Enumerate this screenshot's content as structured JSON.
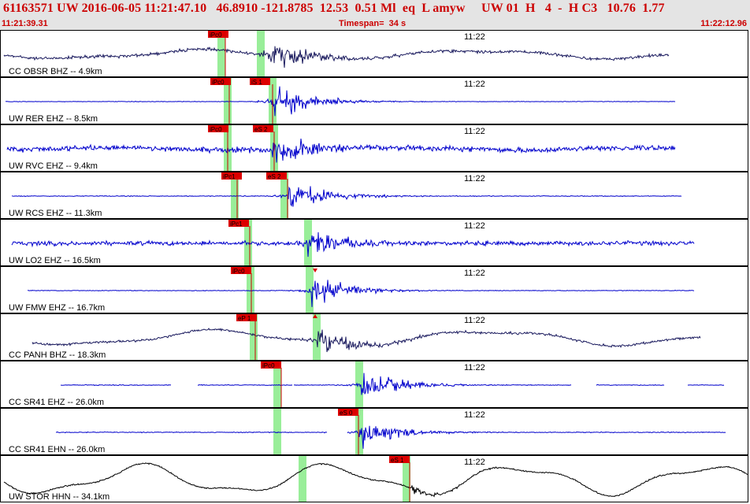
{
  "header": {
    "title": "61163571 UW 2016-06-05 11:21:47.10   46.8910 -121.8785  12.53  0.51 Ml  eq  L amyw     UW 01  H   4  -  H C3   10.76  1.77",
    "time_start": "11:21:39.31",
    "timespan": "Timespan=  34 s",
    "time_end": "11:22:12.96"
  },
  "colors": {
    "blue_trace": "#0000cc",
    "dark_trace": "#1a1a5e",
    "black_trace": "#000000",
    "pick_box": "#dd0000",
    "pick_window": "#99ee99"
  },
  "traces": [
    {
      "label": "CC OBSR BHZ -- 4.9km",
      "tick": "11:22",
      "color": "dark_trace",
      "kind": "lowfreq",
      "picks": [
        {
          "label": "iPc0",
          "x": 263,
          "win": 285
        }
      ],
      "green": [
        275,
        325
      ],
      "event": 340,
      "start": 4,
      "end": 848,
      "noise": 0.2,
      "amp": 0.9,
      "slow": 0.35,
      "seg": []
    },
    {
      "label": "UW RER EHZ -- 8.5km",
      "tick": "11:22",
      "color": "blue_trace",
      "kind": "quiet",
      "picks": [
        {
          "label": "iPc0",
          "x": 266,
          "win": 290
        },
        {
          "label": "iS 1",
          "x": 316,
          "win": 345
        }
      ],
      "green": [
        283,
        340
      ],
      "event": 346,
      "start": 6,
      "end": 856,
      "noise": 0.03,
      "amp": 0.95,
      "slow": 0,
      "seg": []
    },
    {
      "label": "UW RVC EHZ -- 9.4km",
      "tick": "11:22",
      "color": "blue_trace",
      "kind": "noisy",
      "picks": [
        {
          "label": "iPc0",
          "x": 263,
          "win": 288
        },
        {
          "label": "eS 2",
          "x": 320,
          "win": 347
        }
      ],
      "green": [
        283,
        342
      ],
      "event": 345,
      "start": 8,
      "end": 856,
      "noise": 0.35,
      "amp": 0.9,
      "slow": 0.1,
      "seg": []
    },
    {
      "label": "UW RCS EHZ -- 11.3km",
      "tick": "11:22",
      "color": "blue_trace",
      "kind": "quiet",
      "picks": [
        {
          "label": "iPc1",
          "x": 280,
          "win": 300
        },
        {
          "label": "eS 2",
          "x": 337,
          "win": 364
        }
      ],
      "green": [
        292,
        355
      ],
      "event": 365,
      "start": 14,
      "end": 864,
      "noise": 0.05,
      "amp": 0.9,
      "slow": 0,
      "seg": []
    },
    {
      "label": "UW LO2 EHZ -- 16.5km",
      "tick": "11:22",
      "color": "blue_trace",
      "kind": "noisy",
      "picks": [
        {
          "label": "iPc1",
          "x": 289,
          "win": 316
        }
      ],
      "green": [
        309,
        385
      ],
      "event": 390,
      "start": 14,
      "end": 880,
      "noise": 0.28,
      "amp": 0.85,
      "slow": 0,
      "seg": []
    },
    {
      "label": "UW FMW EHZ -- 16.7km",
      "tick": "11:22",
      "color": "blue_trace",
      "kind": "quiet",
      "picks": [
        {
          "label": "iPc0",
          "x": 292,
          "win": 318
        }
      ],
      "green": [
        312,
        387
      ],
      "event": 395,
      "start": 34,
      "end": 880,
      "noise": 0.04,
      "amp": 0.8,
      "slow": 0,
      "seg": []
    },
    {
      "label": "CC PANH BHZ -- 18.3km",
      "tick": "11:22",
      "color": "dark_trace",
      "kind": "lowfreq",
      "picks": [
        {
          "label": "eP 1",
          "x": 299,
          "win": 323
        }
      ],
      "green": [
        316,
        396
      ],
      "event": 402,
      "start": 40,
      "end": 888,
      "noise": 0.15,
      "amp": 0.85,
      "slow": 0.6,
      "seg": []
    },
    {
      "label": "CC SR41 EHZ -- 26.0km",
      "tick": "11:22",
      "color": "blue_trace",
      "kind": "quiet",
      "picks": [
        {
          "label": "iPc0",
          "x": 330,
          "win": 356
        }
      ],
      "green": [
        346,
        450
      ],
      "event": 458,
      "start": 76,
      "end": 918,
      "noise": 0.05,
      "amp": 0.85,
      "slow": 0,
      "seg": [
        [
          76,
          216
        ],
        [
          250,
          370
        ],
        [
          372,
          724
        ],
        [
          756,
          842
        ],
        [
          872,
          918
        ]
      ]
    },
    {
      "label": "CC SR41 EHN -- 26.0km",
      "tick": "11:22",
      "color": "blue_trace",
      "kind": "quiet",
      "picks": [
        {
          "label": "eS 0",
          "x": 428,
          "win": 454
        }
      ],
      "green": [
        346,
        450
      ],
      "event": 455,
      "start": 70,
      "end": 920,
      "noise": 0.05,
      "amp": 0.8,
      "slow": 0,
      "seg": [
        [
          70,
          414
        ],
        [
          440,
          920
        ]
      ]
    },
    {
      "label": "UW STOR HHN -- 34.1km",
      "tick": "11:22",
      "color": "black_trace",
      "kind": "wave",
      "picks": [
        {
          "label": "eS 1",
          "x": 493,
          "win": 519
        }
      ],
      "green": [
        378,
        510
      ],
      "event": 520,
      "start": 4,
      "end": 948,
      "noise": 0.04,
      "amp": 0.2,
      "slow": 0.8,
      "seg": []
    }
  ]
}
